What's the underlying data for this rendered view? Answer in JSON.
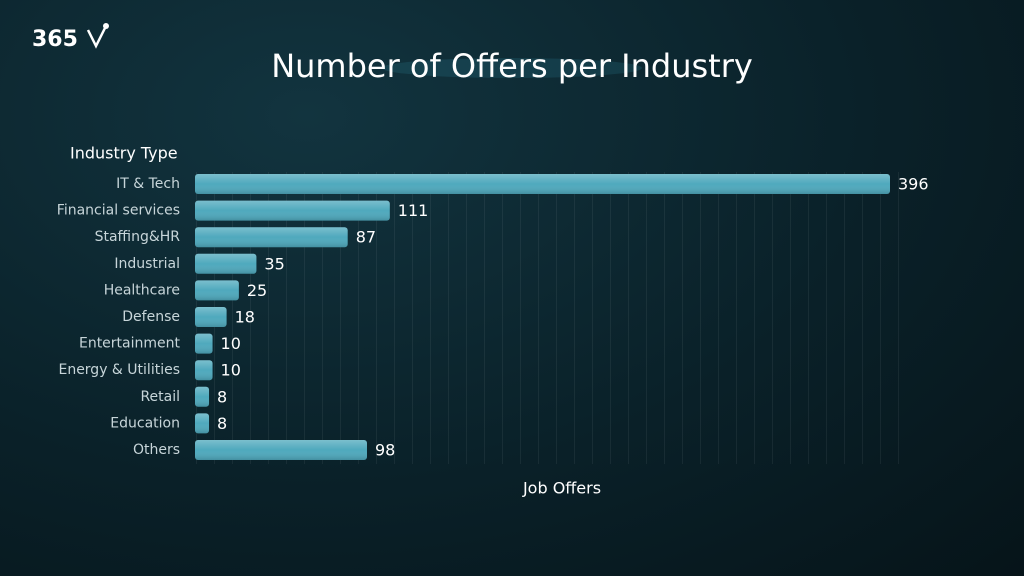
{
  "logo": "365",
  "chart_data": {
    "type": "bar",
    "title": "Number of Offers per Industry",
    "y_label": "Industry Type",
    "x_label": "Job Offers",
    "categories": [
      "IT & Tech",
      "Financial services",
      "Staffing&HR",
      "Industrial",
      "Healthcare",
      "Defense",
      "Entertainment",
      "Energy & Utilities",
      "Retail",
      "Education",
      "Others"
    ],
    "values": [
      396,
      111,
      87,
      35,
      25,
      18,
      10,
      10,
      8,
      8,
      98
    ],
    "color": "#4fa9bd"
  }
}
